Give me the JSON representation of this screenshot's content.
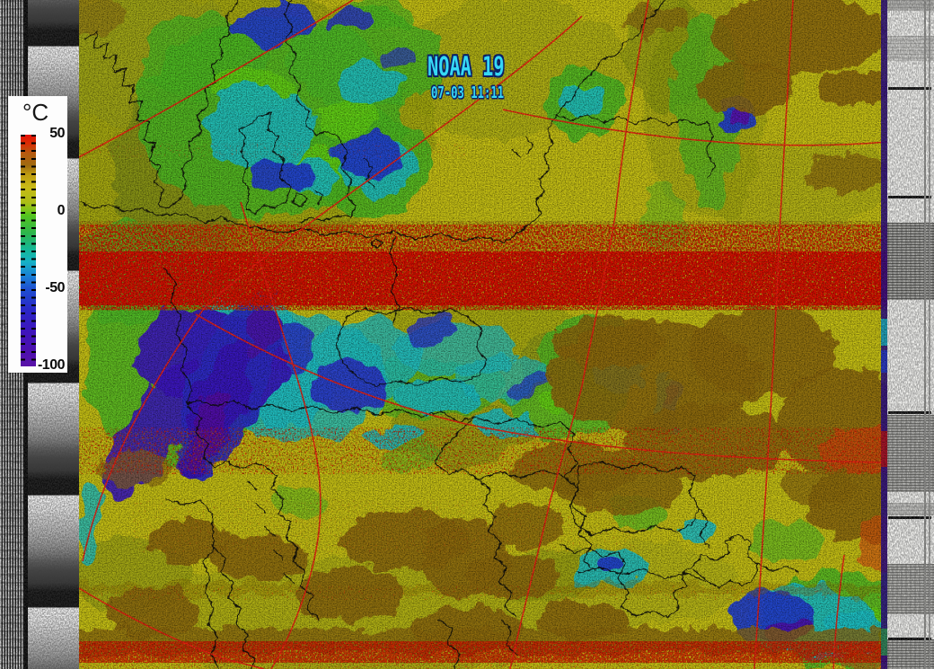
{
  "satellite": {
    "name": "NOAA 19",
    "timestamp": "07-03 11:11"
  },
  "legend": {
    "unit": "°C",
    "max": 50,
    "min": -100,
    "ticks": [
      {
        "label": "50",
        "value": 50
      },
      {
        "label": "0",
        "value": 0
      },
      {
        "label": "-50",
        "value": -50
      },
      {
        "label": "-100",
        "value": -100
      }
    ],
    "gradient_stops": [
      {
        "value": 50,
        "color": "#e41005"
      },
      {
        "value": 44,
        "color": "#d92e04"
      },
      {
        "value": 38,
        "color": "#b55a10"
      },
      {
        "value": 30,
        "color": "#a06a10"
      },
      {
        "value": 24,
        "color": "#bf9d12"
      },
      {
        "value": 16,
        "color": "#c9ba16"
      },
      {
        "value": 6,
        "color": "#abbd16"
      },
      {
        "value": 1,
        "color": "#7cc41a"
      },
      {
        "value": -2,
        "color": "#55c41e"
      },
      {
        "value": -14,
        "color": "#2db54e"
      },
      {
        "value": -24,
        "color": "#15b795"
      },
      {
        "value": -32,
        "color": "#16b2c4"
      },
      {
        "value": -42,
        "color": "#1a7ed6"
      },
      {
        "value": -50,
        "color": "#1e4fd0"
      },
      {
        "value": -64,
        "color": "#2b26c6"
      },
      {
        "value": -78,
        "color": "#3f14bb"
      },
      {
        "value": -90,
        "color": "#4c10ae"
      },
      {
        "value": -100,
        "color": "#5a12a8"
      }
    ]
  },
  "colors": {
    "map_base_yellow": "#c9c315",
    "olive_green": "#9fa614",
    "vegetation_green": "#4fbe25",
    "cold_cloud_cyan": "#1cc2c9",
    "cold_cloud_blue": "#2540d2",
    "cold_cloud_indigo": "#3a16c2",
    "cold_cloud_purple": "#5511ae",
    "warm_brown": "#8f6c10",
    "interference_red": "#d21505",
    "graticule_red": "#ef2113",
    "border_black": "#0d0d0d",
    "title_cyan": "#35d8f5",
    "title_outline_navy": "#0a1f66"
  }
}
